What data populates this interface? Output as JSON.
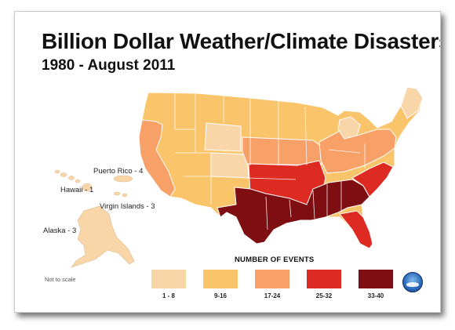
{
  "title": "Billion Dollar Weather/Climate Disasters",
  "subtitle": "1980 - August 2011",
  "territories": {
    "puerto_rico": "Puerto Rico - 4",
    "hawaii": "Hawaii - 1",
    "virgin_islands": "Virgin Islands - 3",
    "alaska": "Alaska - 3"
  },
  "note": "Not to scale",
  "legend": {
    "title": "NUMBER OF EVENTS",
    "items": [
      {
        "label": "1 - 8",
        "color": "#f9d6a8"
      },
      {
        "label": "9-16",
        "color": "#f9c46a"
      },
      {
        "label": "17-24",
        "color": "#f7a067"
      },
      {
        "label": "25-32",
        "color": "#dd2a22"
      },
      {
        "label": "33-40",
        "color": "#7e0e12"
      }
    ]
  },
  "regions": [
    {
      "name": "west-coast",
      "category": "17-24"
    },
    {
      "name": "interior-west",
      "category": "9-16"
    },
    {
      "name": "wyoming",
      "category": "1-8"
    },
    {
      "name": "colorado",
      "category": "1-8"
    },
    {
      "name": "central-plains-north",
      "category": "9-16"
    },
    {
      "name": "nebraska-iowa-band",
      "category": "17-24"
    },
    {
      "name": "kansas-missouri-arkansas",
      "category": "25-32"
    },
    {
      "name": "texas-oklahoma-deep-south",
      "category": "33-40"
    },
    {
      "name": "carolinas-florida",
      "category": "25-32"
    },
    {
      "name": "great-lakes-northeast",
      "category": "17-24"
    },
    {
      "name": "michigan-maine",
      "category": "1-8"
    }
  ],
  "icons": {
    "logo": "noaa-logo-icon"
  }
}
